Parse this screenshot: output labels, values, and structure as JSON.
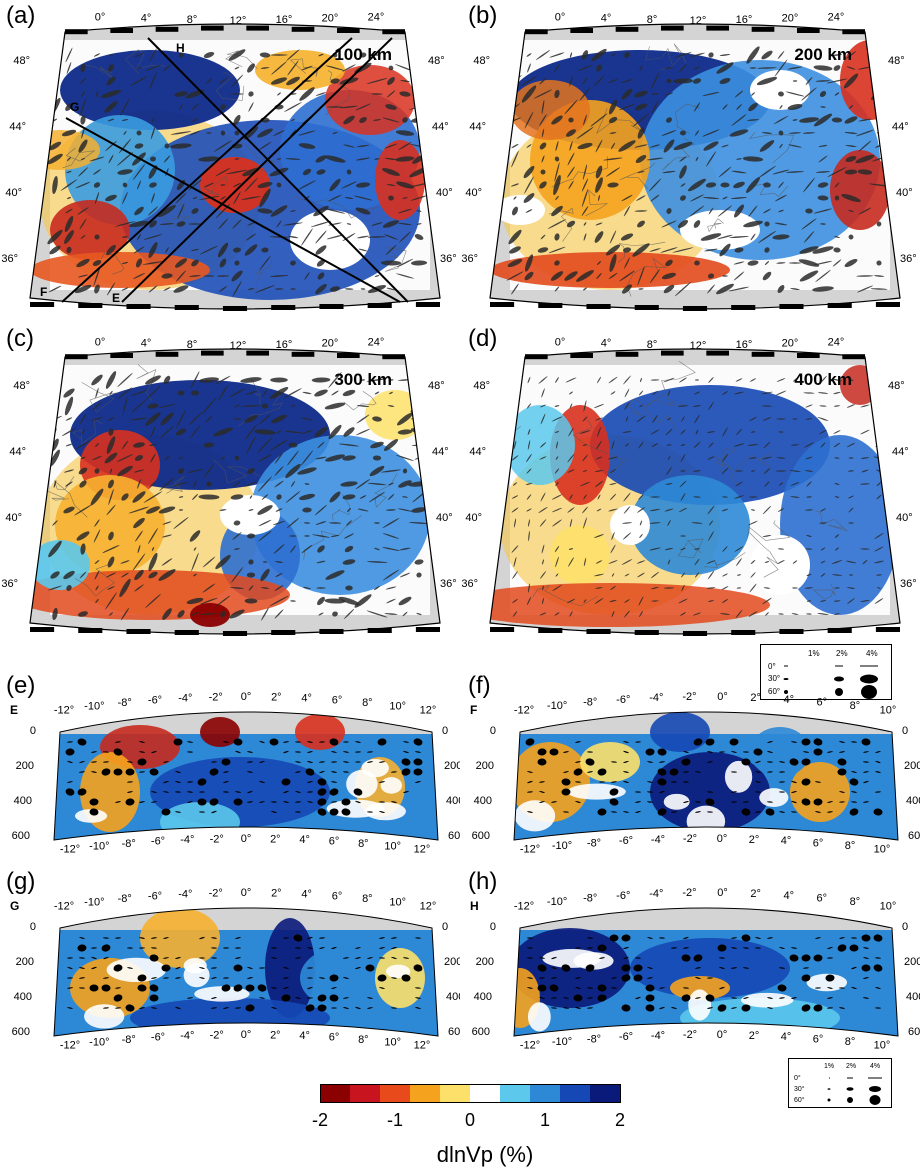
{
  "panel_labels": [
    "(a)",
    "(b)",
    "(c)",
    "(d)",
    "(e)",
    "(f)",
    "(g)",
    "(h)"
  ],
  "map_depths": [
    "100 km",
    "200 km",
    "300 km",
    "400 km"
  ],
  "map_lon_ticks": [
    "0°",
    "4°",
    "8°",
    "12°",
    "16°",
    "20°",
    "24°"
  ],
  "map_lat_ticks": [
    "48°",
    "44°",
    "40°",
    "36°"
  ],
  "profile_lines": [
    "H",
    "G",
    "F",
    "E"
  ],
  "section_labels": [
    "E",
    "F",
    "G",
    "H"
  ],
  "section_depth_ticks": [
    "0",
    "200",
    "400",
    "600"
  ],
  "section_e_top": [
    "-12°",
    "-10°",
    "-8°",
    "-6°",
    "-4°",
    "-2°",
    "0°",
    "2°",
    "4°",
    "6°",
    "8°",
    "10°",
    "12°"
  ],
  "section_f_top": [
    "-12°",
    "-10°",
    "-8°",
    "-6°",
    "-4°",
    "-2°",
    "0°",
    "2°",
    "4°",
    "6°",
    "8°",
    "10°"
  ],
  "section_f_bottom": [
    "-12°",
    "-10°",
    "-8°",
    "-6°",
    "-4°",
    "-2°",
    "0°",
    "2°",
    "4°",
    "6°",
    "8°",
    "10°"
  ],
  "section_g_top": [
    "-12°",
    "-10°",
    "-8°",
    "-6°",
    "-4°",
    "-2°",
    "0°",
    "2°",
    "4°",
    "6°",
    "8°",
    "10°",
    "12°"
  ],
  "section_h_top": [
    "-12°",
    "-10°",
    "-8°",
    "-6°",
    "-4°",
    "-2°",
    "0°",
    "2°",
    "4°",
    "6°",
    "8°",
    "10°"
  ],
  "legend": {
    "headers": [
      "1%",
      "2%",
      "4%"
    ],
    "rows": [
      "0°",
      "30°",
      "60°"
    ]
  },
  "colorbar": {
    "ticks": [
      "-2",
      "-1",
      "0",
      "1",
      "2"
    ],
    "label": "dlnVp (%)",
    "colors": [
      "#8b0000",
      "#c8141e",
      "#e84a1c",
      "#f5a21e",
      "#fde06a",
      "#ffffff",
      "#5bc8ec",
      "#2d89d6",
      "#1548b4",
      "#0a1a7a"
    ]
  },
  "colors": {
    "fast": "#1d4fb8",
    "slow": "#d8301e",
    "mask": "#d4d4d4",
    "anis": "#505050"
  }
}
